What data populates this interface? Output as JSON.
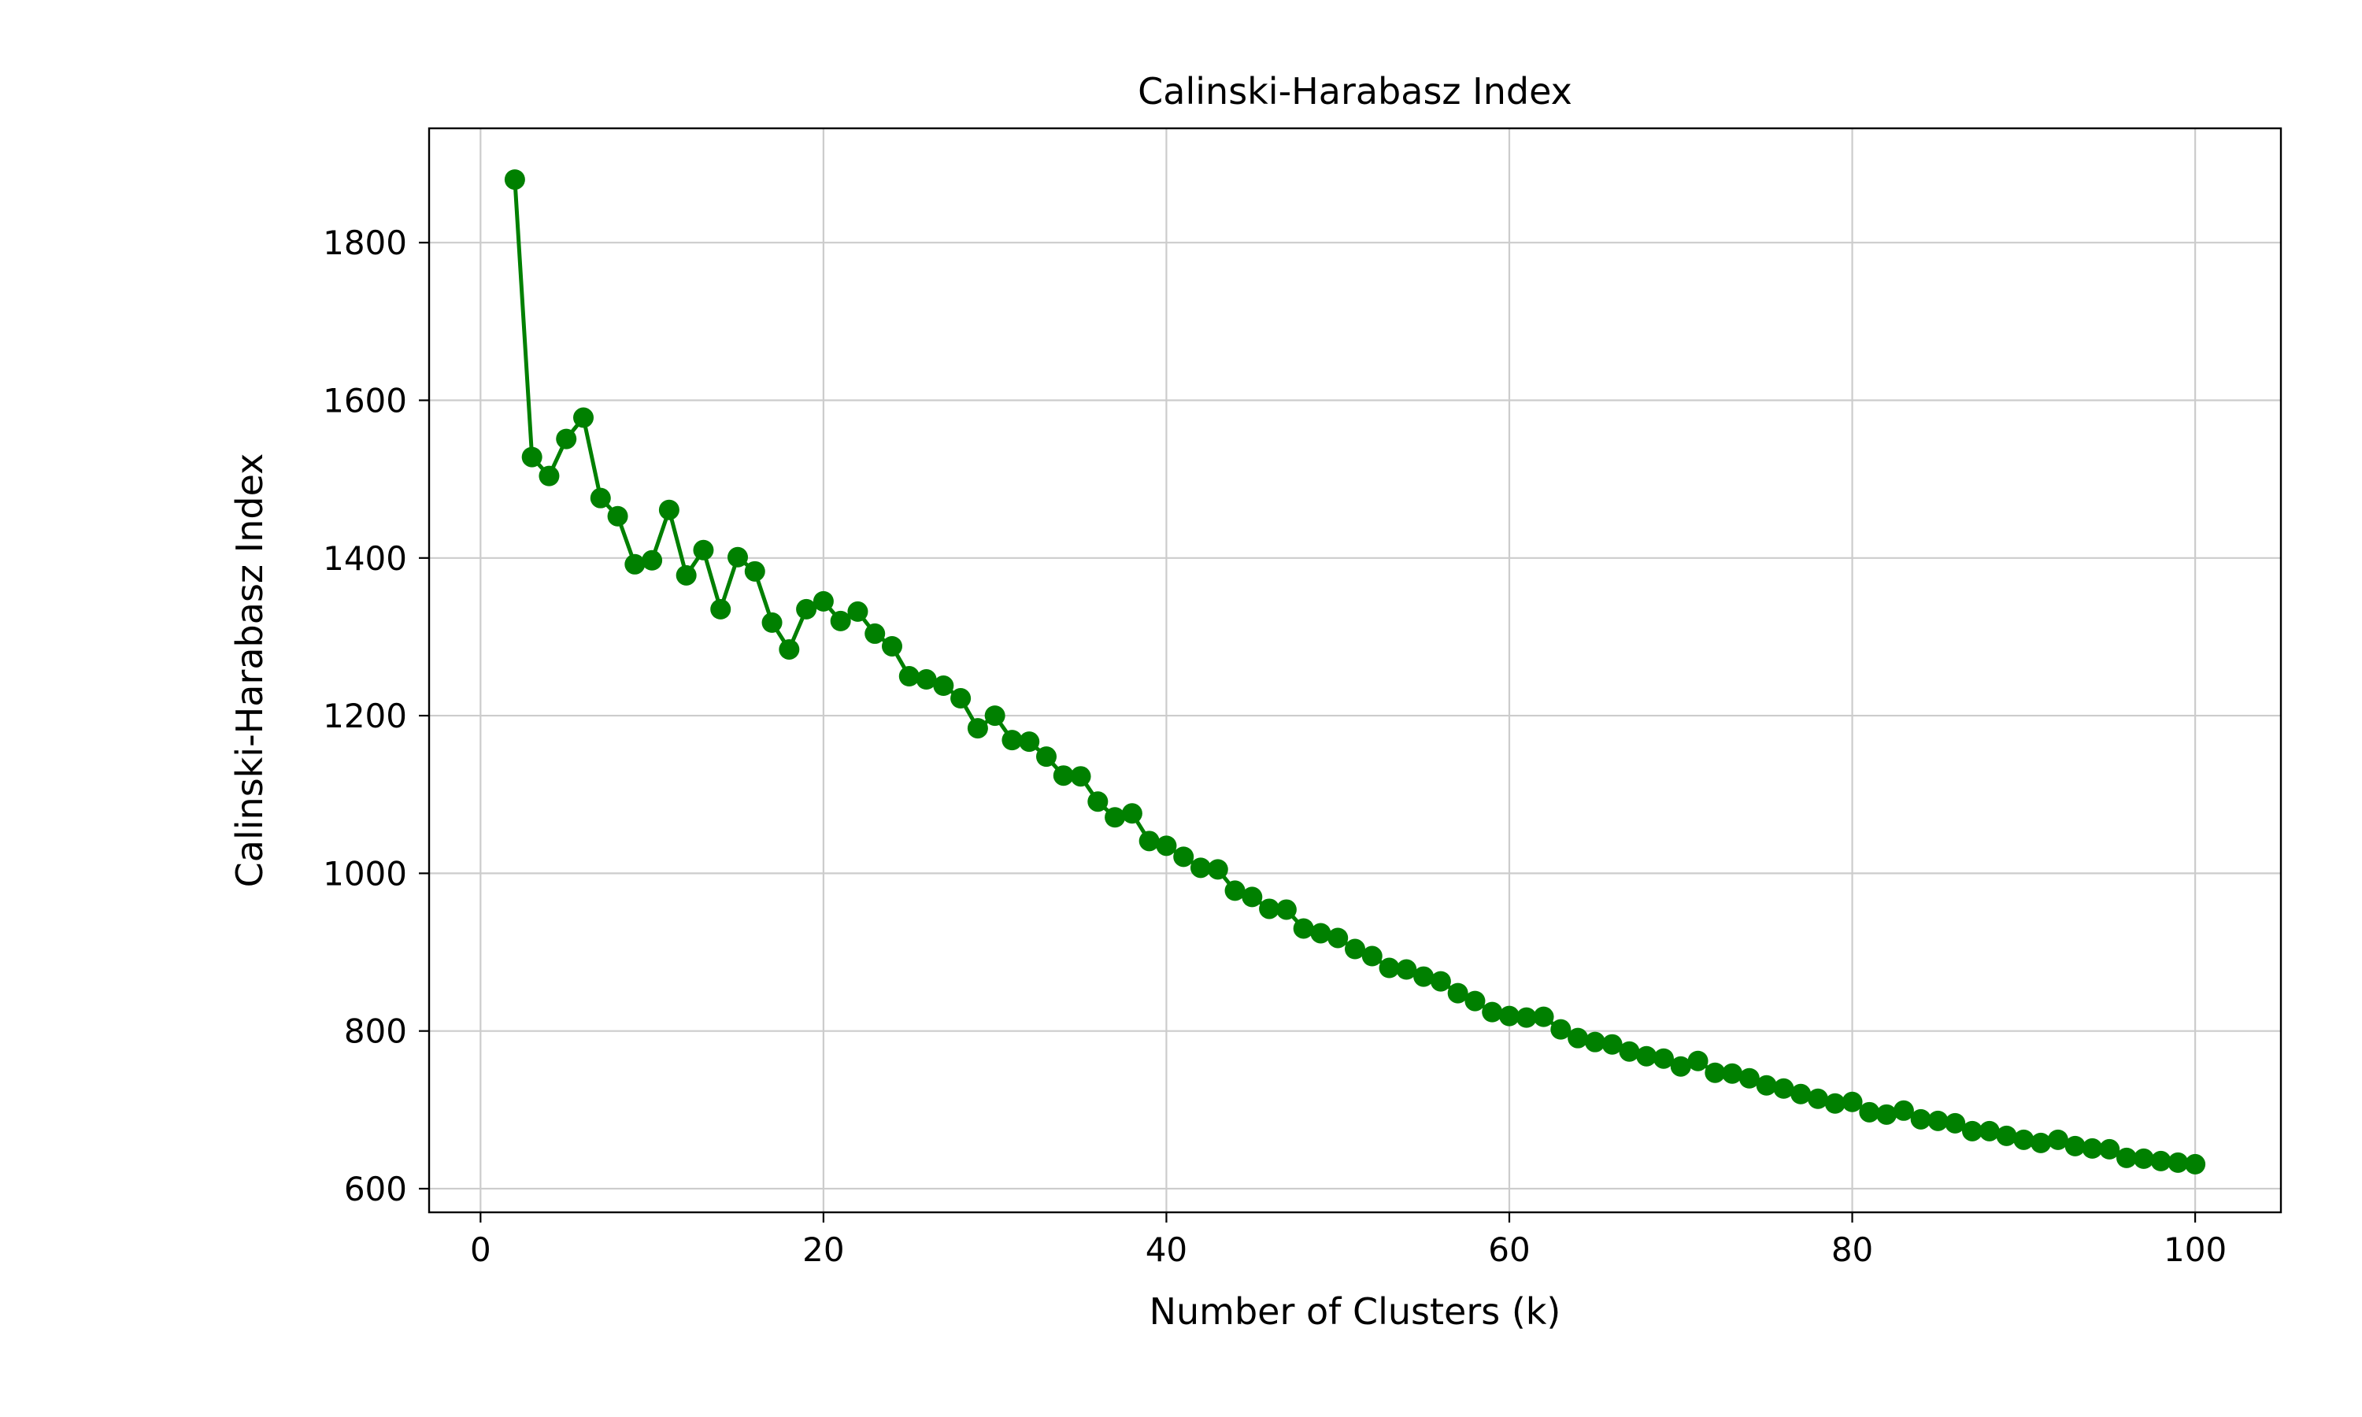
{
  "chart_data": {
    "type": "line",
    "title": "Calinski-Harabasz Index",
    "xlabel": "Number of Clusters (k)",
    "ylabel": "Calinski-Harabasz Index",
    "xlim": [
      -3,
      105
    ],
    "ylim": [
      570,
      1945
    ],
    "xticks": [
      0,
      20,
      40,
      60,
      80,
      100
    ],
    "yticks": [
      600,
      800,
      1000,
      1200,
      1400,
      1600,
      1800
    ],
    "grid": true,
    "color": "#008000",
    "marker": "circle",
    "x": [
      2,
      3,
      4,
      5,
      6,
      7,
      8,
      9,
      10,
      11,
      12,
      13,
      14,
      15,
      16,
      17,
      18,
      19,
      20,
      21,
      22,
      23,
      24,
      25,
      26,
      27,
      28,
      29,
      30,
      31,
      32,
      33,
      34,
      35,
      36,
      37,
      38,
      39,
      40,
      41,
      42,
      43,
      44,
      45,
      46,
      47,
      48,
      49,
      50,
      51,
      52,
      53,
      54,
      55,
      56,
      57,
      58,
      59,
      60,
      61,
      62,
      63,
      64,
      65,
      66,
      67,
      68,
      69,
      70,
      71,
      72,
      73,
      74,
      75,
      76,
      77,
      78,
      79,
      80,
      81,
      82,
      83,
      84,
      85,
      86,
      87,
      88,
      89,
      90,
      91,
      92,
      93,
      94,
      95,
      96,
      97,
      98,
      99,
      100
    ],
    "y": [
      1880,
      1528,
      1504,
      1551,
      1578,
      1476,
      1453,
      1392,
      1397,
      1461,
      1378,
      1410,
      1335,
      1401,
      1383,
      1318,
      1284,
      1335,
      1345,
      1320,
      1332,
      1304,
      1288,
      1250,
      1246,
      1238,
      1222,
      1184,
      1200,
      1169,
      1167,
      1148,
      1124,
      1123,
      1091,
      1071,
      1076,
      1041,
      1035,
      1021,
      1007,
      1005,
      978,
      970,
      955,
      954,
      930,
      924,
      918,
      904,
      895,
      880,
      878,
      869,
      863,
      848,
      838,
      824,
      819,
      817,
      818,
      802,
      791,
      786,
      783,
      774,
      768,
      765,
      755,
      762,
      747,
      746,
      740,
      731,
      727,
      720,
      714,
      708,
      710,
      697,
      694,
      699,
      688,
      686,
      683,
      673,
      673,
      667,
      662,
      658,
      662,
      654,
      651,
      650,
      639,
      638,
      635,
      633,
      631
    ]
  }
}
